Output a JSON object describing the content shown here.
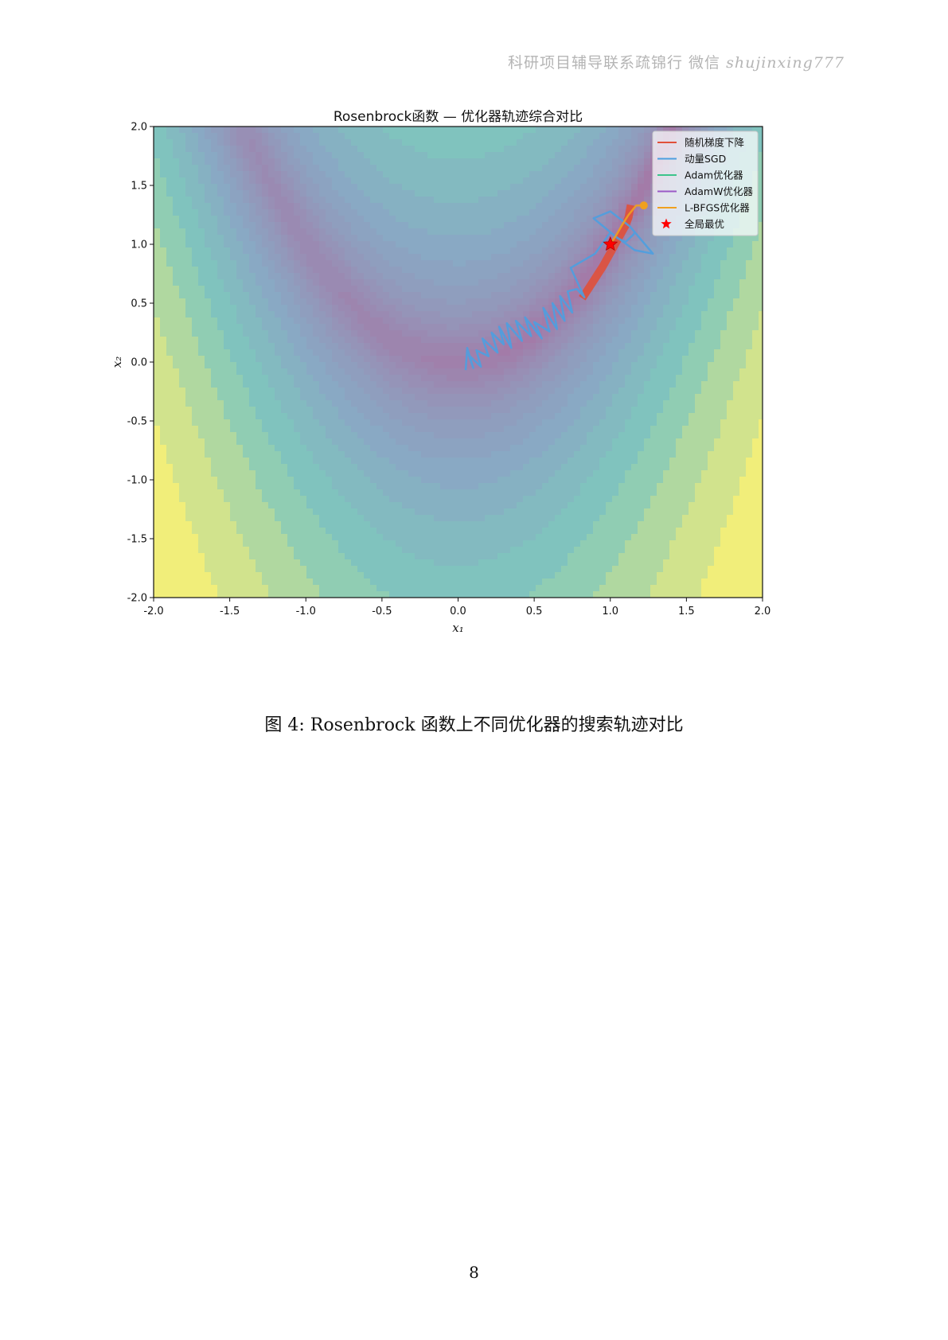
{
  "header": {
    "text": "科研项目辅导联系疏锦行 微信",
    "handle": "shujinxing777"
  },
  "caption": "图 4: Rosenbrock 函数上不同优化器的搜索轨迹对比",
  "page_number": "8",
  "chart_data": {
    "type": "line",
    "title": "Rosenbrock函数 — 优化器轨迹综合对比",
    "xlabel": "x₁",
    "ylabel": "x₂",
    "xlim": [
      -2.0,
      2.0
    ],
    "ylim": [
      -2.0,
      2.0
    ],
    "xticks": [
      "-2.0",
      "-1.5",
      "-1.0",
      "-0.5",
      "0.0",
      "0.5",
      "1.0",
      "1.5",
      "2.0"
    ],
    "yticks": [
      "-2.0",
      "-1.5",
      "-1.0",
      "-0.5",
      "0.0",
      "0.5",
      "1.0",
      "1.5",
      "2.0"
    ],
    "grid": false,
    "legend_position": "top-right",
    "background": "filled contour of Rosenbrock function",
    "colors": {
      "contour_low": "#a37ba8",
      "contour_mid": "#8aa7c4",
      "contour_teal": "#7fc7bd",
      "contour_high": "#f1ee7a"
    },
    "series": [
      {
        "name": "随机梯度下降",
        "color": "#e0503a",
        "x": [
          0.83,
          0.86,
          0.89,
          0.92,
          0.95,
          0.98,
          1.01,
          1.04,
          1.07,
          1.1,
          1.12,
          1.13
        ],
        "y": [
          0.57,
          0.63,
          0.69,
          0.75,
          0.81,
          0.88,
          0.95,
          1.02,
          1.09,
          1.16,
          1.23,
          1.3
        ]
      },
      {
        "name": "动量SGD",
        "color": "#4c9fe0",
        "x": [
          0.05,
          0.06,
          0.1,
          0.07,
          0.15,
          0.12,
          0.2,
          0.16,
          0.26,
          0.22,
          0.3,
          0.27,
          0.35,
          0.32,
          0.42,
          0.38,
          0.48,
          0.44,
          0.55,
          0.5,
          0.6,
          0.56,
          0.65,
          0.62,
          0.7,
          0.67,
          0.75,
          0.72,
          0.78,
          0.83,
          0.74,
          0.9,
          1.0,
          1.16,
          1.28,
          1.13,
          1.0,
          0.89,
          1.05,
          1.1,
          1.15,
          1.16
        ],
        "y": [
          -0.06,
          0.12,
          -0.05,
          0.06,
          -0.04,
          0.1,
          0.05,
          0.2,
          0.08,
          0.25,
          0.15,
          0.3,
          0.12,
          0.33,
          0.18,
          0.35,
          0.22,
          0.38,
          0.2,
          0.34,
          0.26,
          0.46,
          0.28,
          0.5,
          0.35,
          0.56,
          0.42,
          0.6,
          0.62,
          0.55,
          0.8,
          0.92,
          1.1,
          0.95,
          0.92,
          1.15,
          1.28,
          1.22,
          1.05,
          1.02,
          1.08,
          1.1
        ]
      },
      {
        "name": "Adam优化器",
        "color": "#3cc48b",
        "x": [],
        "y": []
      },
      {
        "name": "AdamW优化器",
        "color": "#9b59c6",
        "x": [],
        "y": []
      },
      {
        "name": "L-BFGS优化器",
        "color": "#f0a020",
        "x": [
          1.22,
          1.17,
          1.12,
          1.08,
          1.04,
          1.0
        ],
        "y": [
          1.33,
          1.33,
          1.25,
          1.17,
          1.08,
          1.0
        ]
      },
      {
        "name": "全局最优",
        "color": "#ff0000",
        "marker": "star",
        "x": [
          1.0
        ],
        "y": [
          1.0
        ]
      }
    ]
  }
}
